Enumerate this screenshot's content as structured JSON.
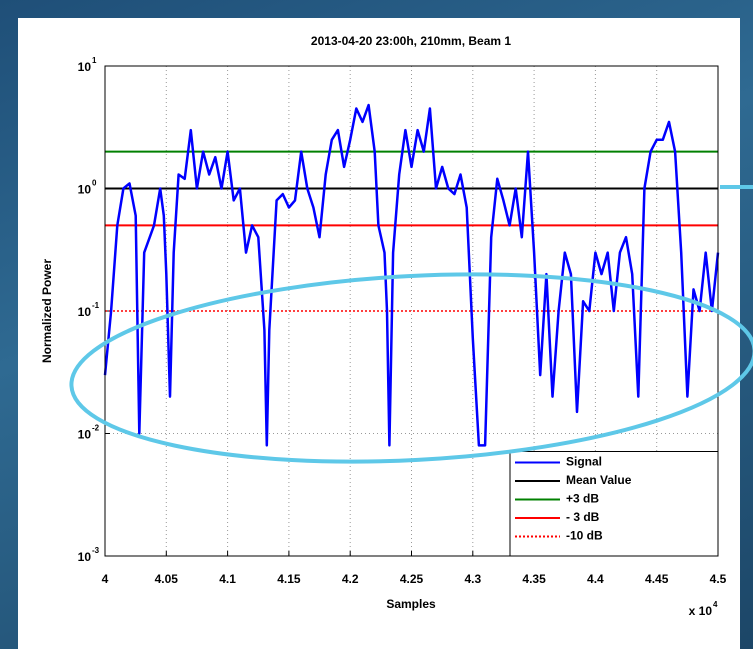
{
  "chart_data": {
    "type": "line",
    "title": "2013-04-20 23:00h, 210mm, Beam 1",
    "x_label": "Samples",
    "y_label": "Normalized Power",
    "x_multiplier": {
      "label": "x 10",
      "exponent": "4"
    },
    "log_y": true,
    "grid": true,
    "legend": "lower right",
    "xlim": [
      40000,
      45000
    ],
    "xticks": [
      {
        "value": 40000,
        "label": "4"
      },
      {
        "value": 40500,
        "label": "4.05"
      },
      {
        "value": 41000,
        "label": "4.1"
      },
      {
        "value": 41500,
        "label": "4.15"
      },
      {
        "value": 42000,
        "label": "4.2"
      },
      {
        "value": 42500,
        "label": "4.25"
      },
      {
        "value": 43000,
        "label": "4.3"
      },
      {
        "value": 43500,
        "label": "4.35"
      },
      {
        "value": 44000,
        "label": "4.4"
      },
      {
        "value": 44500,
        "label": "4.45"
      },
      {
        "value": 45000,
        "label": "4.5"
      }
    ],
    "ylim": [
      0.001,
      10
    ],
    "yticks": [
      {
        "value": 0.001,
        "label": "10",
        "exponent": "-3"
      },
      {
        "value": 0.01,
        "label": "10",
        "exponent": "-2"
      },
      {
        "value": 0.1,
        "label": "10",
        "exponent": "-1"
      },
      {
        "value": 1,
        "label": "10",
        "exponent": "0"
      },
      {
        "value": 10,
        "label": "10",
        "exponent": "1"
      }
    ],
    "series": [
      {
        "name": "Signal",
        "color": "#0000ff",
        "x": [
          40000,
          40050,
          40100,
          40150,
          40200,
          40250,
          40280,
          40320,
          40400,
          40450,
          40480,
          40500,
          40530,
          40560,
          40600,
          40650,
          40700,
          40750,
          40800,
          40850,
          40900,
          40950,
          41000,
          41050,
          41100,
          41150,
          41200,
          41250,
          41300,
          41320,
          41340,
          41400,
          41450,
          41500,
          41550,
          41600,
          41650,
          41700,
          41750,
          41800,
          41850,
          41900,
          41950,
          42000,
          42050,
          42100,
          42150,
          42200,
          42230,
          42280,
          42300,
          42320,
          42350,
          42400,
          42450,
          42500,
          42550,
          42600,
          42650,
          42700,
          42750,
          42800,
          42850,
          42900,
          42950,
          43000,
          43050,
          43100,
          43150,
          43200,
          43250,
          43300,
          43350,
          43400,
          43450,
          43500,
          43550,
          43600,
          43650,
          43700,
          43750,
          43800,
          43850,
          43900,
          43950,
          44000,
          44050,
          44100,
          44150,
          44200,
          44250,
          44300,
          44350,
          44400,
          44450,
          44500,
          44550,
          44600,
          44650,
          44700,
          44750,
          44800,
          44850,
          44900,
          44950,
          45000
        ],
        "values": [
          0.03,
          0.1,
          0.5,
          1.0,
          1.1,
          0.6,
          0.01,
          0.3,
          0.5,
          1.0,
          0.6,
          0.2,
          0.02,
          0.3,
          1.3,
          1.2,
          3.0,
          1.0,
          2.0,
          1.3,
          1.8,
          1.0,
          2.0,
          0.8,
          1.0,
          0.3,
          0.5,
          0.4,
          0.07,
          0.008,
          0.07,
          0.8,
          0.9,
          0.7,
          0.8,
          2.0,
          1.0,
          0.7,
          0.4,
          1.3,
          2.5,
          3.0,
          1.5,
          2.5,
          4.5,
          3.5,
          4.8,
          2.0,
          0.5,
          0.3,
          0.1,
          0.008,
          0.3,
          1.3,
          3.0,
          1.5,
          3.0,
          2.0,
          4.5,
          1.0,
          1.5,
          1.0,
          0.9,
          1.3,
          0.7,
          0.06,
          0.008,
          0.008,
          0.4,
          1.2,
          0.8,
          0.5,
          1.0,
          0.4,
          2.0,
          0.3,
          0.03,
          0.2,
          0.02,
          0.1,
          0.3,
          0.2,
          0.015,
          0.12,
          0.1,
          0.3,
          0.2,
          0.3,
          0.1,
          0.3,
          0.4,
          0.2,
          0.02,
          1.0,
          2.0,
          2.5,
          2.5,
          3.5,
          2.0,
          0.3,
          0.02,
          0.15,
          0.1,
          0.3,
          0.1,
          0.3
        ]
      }
    ],
    "hlines": [
      {
        "name": "Mean Value",
        "value": 1,
        "color": "#000000",
        "dash": false
      },
      {
        "name": "+3 dB",
        "value": 2,
        "color": "#008000",
        "dash": false
      },
      {
        "name": "- 3 dB",
        "value": 0.5,
        "color": "#ff0000",
        "dash": false
      },
      {
        "name": "-10 dB",
        "value": 0.1,
        "color": "#ff0000",
        "dash": true
      }
    ]
  }
}
